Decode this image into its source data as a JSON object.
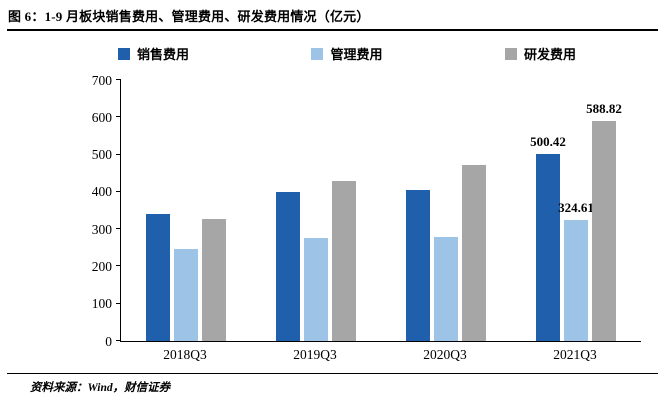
{
  "header": {
    "label": "图 6：",
    "title": "1-9 月板块销售费用、管理费用、研发费用情况（亿元）"
  },
  "footer": {
    "source": "资料来源：Wind，财信证券"
  },
  "chart_data": {
    "type": "bar",
    "title": "1-9 月板块销售费用、管理费用、研发费用情况（亿元）",
    "categories": [
      "2018Q3",
      "2019Q3",
      "2020Q3",
      "2021Q3"
    ],
    "series": [
      {
        "name": "销售费用",
        "color": "#1F5FAC",
        "values": [
          340,
          400,
          404,
          500.42
        ]
      },
      {
        "name": "管理费用",
        "color": "#9DC3E6",
        "values": [
          248,
          276,
          278,
          324.61
        ]
      },
      {
        "name": "研发费用",
        "color": "#A6A6A6",
        "values": [
          327,
          429,
          472,
          588.82
        ]
      }
    ],
    "ylim": [
      0,
      700
    ],
    "yticks": [
      0,
      100,
      200,
      300,
      400,
      500,
      600,
      700
    ],
    "grid": false,
    "legend_position": "top",
    "annotations": [
      {
        "category": "2021Q3",
        "series": "销售费用",
        "text": "500.42"
      },
      {
        "category": "2021Q3",
        "series": "管理费用",
        "text": "324.61"
      },
      {
        "category": "2021Q3",
        "series": "研发费用",
        "text": "588.82"
      }
    ]
  }
}
